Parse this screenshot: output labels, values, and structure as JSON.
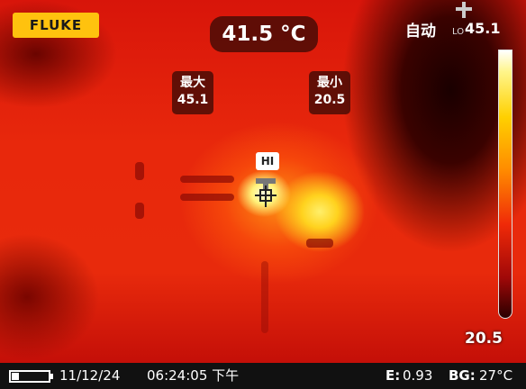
{
  "header": {
    "brand": "FLUKE",
    "center_temperature": "41.5 °C",
    "mode": "自动",
    "range_low_tag": "LO",
    "range_high": "45.1"
  },
  "markers": {
    "max": {
      "label": "最大",
      "value": "45.1"
    },
    "min": {
      "label": "最小",
      "value": "20.5"
    },
    "hot_spot": "HI"
  },
  "scale": {
    "low": "20.5"
  },
  "status_bar": {
    "date": "11/12/24",
    "time": "06:24:05 下午",
    "emissivity_label": "E:",
    "emissivity": "0.93",
    "background_label": "BG:",
    "background": "27°C"
  }
}
